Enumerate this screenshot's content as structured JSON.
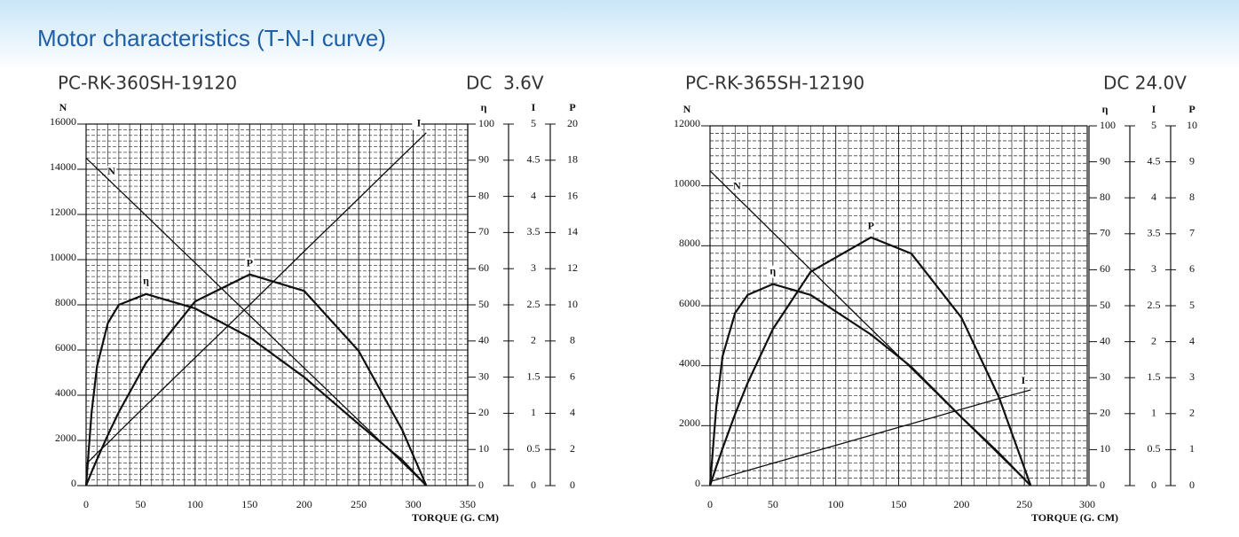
{
  "title": "Motor characteristics (T-N-I curve)",
  "chart_data": [
    {
      "type": "line",
      "model": "PC-RK-360SH-19120",
      "voltage": "DC  3.6V",
      "xlabel": "TORQUE (G. CM)",
      "xlim": [
        0,
        350
      ],
      "xticks": [
        0,
        50,
        100,
        150,
        200,
        250,
        300,
        350
      ],
      "ylabel": "N",
      "ylim": [
        0,
        16000
      ],
      "yticks": [
        0,
        2000,
        4000,
        6000,
        8000,
        10000,
        12000,
        14000,
        16000
      ],
      "y2label": "η",
      "y2lim": [
        0,
        100
      ],
      "y2ticks": [
        0,
        10,
        20,
        30,
        40,
        50,
        60,
        70,
        80,
        90,
        100
      ],
      "y3label": "I",
      "y3lim": [
        0,
        5
      ],
      "y3ticks": [
        0,
        0.5,
        1,
        1.5,
        2,
        2.5,
        3,
        3.5,
        4,
        4.5,
        5
      ],
      "y4label": "P",
      "y4lim": [
        0,
        20
      ],
      "y4ticks": [
        0,
        2,
        4,
        6,
        8,
        10,
        12,
        14,
        16,
        18,
        20
      ],
      "grid": true,
      "x": [
        0,
        5,
        10,
        20,
        30,
        55,
        100,
        150,
        200,
        250,
        290,
        312
      ],
      "series": [
        {
          "name": "N",
          "color": "#111111",
          "axis": "y",
          "values": [
            14500,
            14268,
            14035,
            13570,
            13106,
            11944,
            9853,
            7529,
            5205,
            2881,
            1022,
            0
          ]
        },
        {
          "name": "η",
          "color": "#111111",
          "axis": "y2",
          "values": [
            0,
            20,
            33,
            45,
            50,
            53,
            49,
            41,
            30,
            17,
            7,
            0
          ]
        },
        {
          "name": "I",
          "color": "#111111",
          "axis": "y3",
          "values": [
            0.3,
            0.37,
            0.45,
            0.59,
            0.74,
            1.11,
            1.77,
            2.5,
            3.24,
            3.97,
            4.56,
            4.88
          ]
        },
        {
          "name": "P",
          "color": "#111111",
          "axis": "y4",
          "values": [
            0,
            0.74,
            1.45,
            2.81,
            4.07,
            6.8,
            10.19,
            11.68,
            10.77,
            7.45,
            3.07,
            0
          ]
        }
      ]
    },
    {
      "type": "line",
      "model": "PC-RK-365SH-12190",
      "voltage": "DC 24.0V",
      "xlabel": "TORQUE (G. CM)",
      "xlim": [
        0,
        300
      ],
      "xticks": [
        0,
        50,
        100,
        150,
        200,
        250,
        300
      ],
      "ylabel": "N",
      "ylim": [
        0,
        12000
      ],
      "yticks": [
        0,
        2000,
        4000,
        6000,
        8000,
        10000,
        12000
      ],
      "y2label": "η",
      "y2lim": [
        0,
        100
      ],
      "y2ticks": [
        0,
        10,
        20,
        30,
        40,
        50,
        60,
        70,
        80,
        90,
        100
      ],
      "y3label": "I",
      "y3lim": [
        0,
        5
      ],
      "y3ticks": [
        0,
        0.5,
        1,
        1.5,
        2,
        2.5,
        3,
        3.5,
        4,
        4.5,
        5
      ],
      "y4label": "P",
      "y4lim": [
        0,
        10
      ],
      "y4ticks": [
        0,
        1,
        2,
        3,
        4,
        5,
        6,
        7,
        8,
        9,
        10
      ],
      "grid": true,
      "x": [
        0,
        5,
        10,
        20,
        30,
        50,
        80,
        128,
        160,
        200,
        230,
        255
      ],
      "series": [
        {
          "name": "N",
          "color": "#111111",
          "axis": "y",
          "values": [
            10500,
            10294,
            10088,
            9676,
            9265,
            8441,
            7206,
            5229,
            3912,
            2265,
            1029,
            0
          ]
        },
        {
          "name": "η",
          "color": "#111111",
          "axis": "y2",
          "values": [
            0,
            22,
            36,
            48,
            53,
            56,
            53,
            42,
            33,
            19,
            9,
            0
          ]
        },
        {
          "name": "I",
          "color": "#111111",
          "axis": "y3",
          "values": [
            0.06,
            0.08,
            0.11,
            0.16,
            0.21,
            0.31,
            0.46,
            0.7,
            0.86,
            1.06,
            1.21,
            1.33
          ]
        },
        {
          "name": "P",
          "color": "#111111",
          "axis": "y4",
          "values": [
            0,
            0.53,
            1.04,
            1.99,
            2.86,
            4.35,
            5.94,
            6.9,
            6.45,
            4.67,
            2.44,
            0
          ]
        }
      ]
    }
  ]
}
